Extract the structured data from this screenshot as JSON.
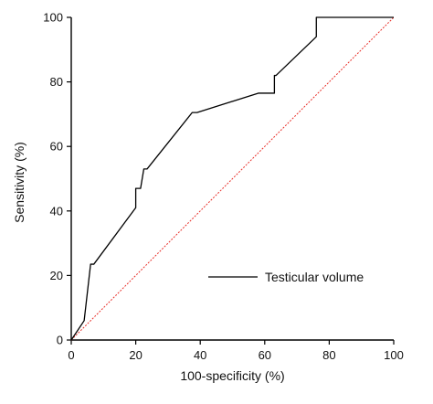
{
  "chart_data": {
    "type": "line",
    "title": "",
    "xlabel": "100-specificity (%)",
    "ylabel": "Sensitivity (%)",
    "xlim": [
      0,
      100
    ],
    "ylim": [
      0,
      100
    ],
    "xticks": [
      0,
      20,
      40,
      60,
      80,
      100
    ],
    "yticks": [
      0,
      20,
      40,
      60,
      80,
      100
    ],
    "xtick_labels": [
      "0",
      "20",
      "40",
      "60",
      "80",
      "100"
    ],
    "ytick_labels": [
      "0",
      "20",
      "40",
      "60",
      "80",
      "100"
    ],
    "grid": false,
    "legend_position": "bottom-right",
    "series": [
      {
        "name": "Testicular volume",
        "color": "#000000",
        "x": [
          0,
          4,
          6,
          7,
          20,
          20,
          21.5,
          22.5,
          23.5,
          37.5,
          39,
          58,
          63,
          63,
          63.5,
          76,
          76,
          100
        ],
        "y": [
          0,
          6,
          23.5,
          23.5,
          41,
          47,
          47,
          53,
          53,
          70.5,
          70.5,
          76.5,
          76.5,
          82,
          82,
          94,
          100,
          100
        ]
      },
      {
        "name": "",
        "color": "#e8302a",
        "style": "dashed",
        "x": [
          0,
          100
        ],
        "y": [
          0,
          100
        ]
      }
    ]
  }
}
